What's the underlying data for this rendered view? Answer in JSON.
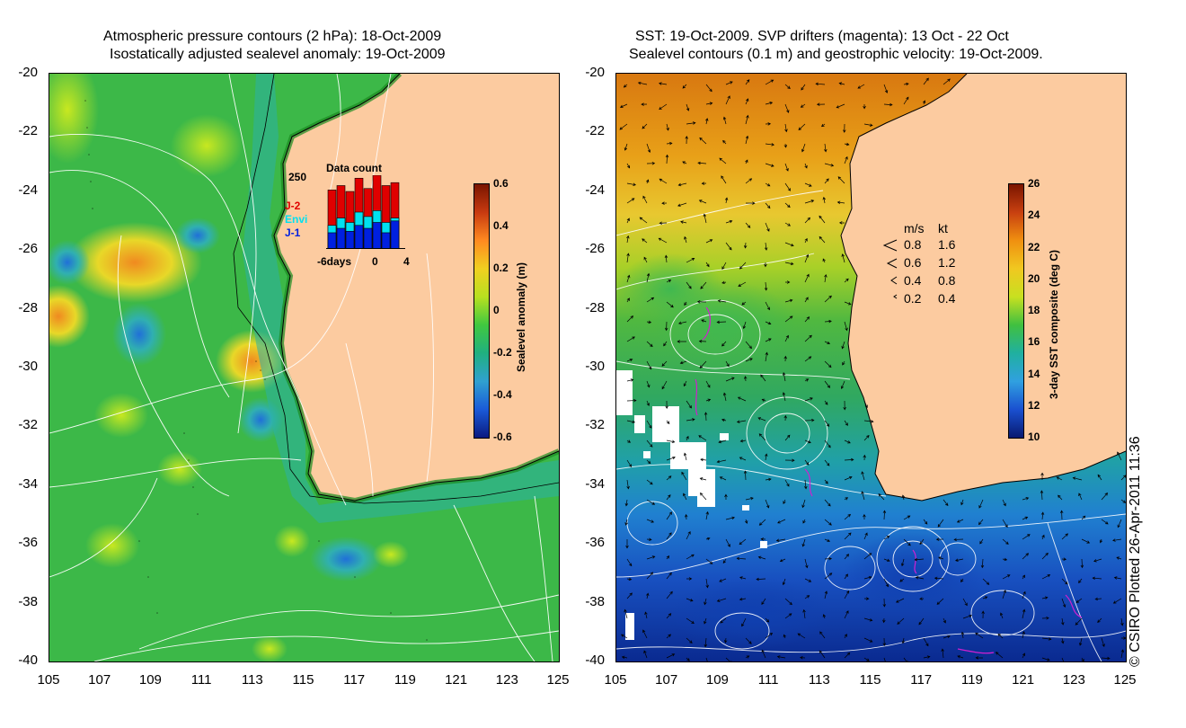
{
  "left": {
    "title_line1": "Atmospheric pressure contours (2 hPa): 18-Oct-2009",
    "title_line2": "Isostatically adjusted sealevel anomaly: 19-Oct-2009",
    "colorbar_label": "Sealevel anomaly (m)",
    "colorbar_ticks": [
      "0.6",
      "0.4",
      "0.2",
      "0",
      "-0.2",
      "-0.4",
      "-0.6"
    ],
    "colorbar_colors": [
      "#7a1500",
      "#c83a10",
      "#ff8a20",
      "#f0d020",
      "#b8e020",
      "#40c840",
      "#20b080",
      "#30a0d0",
      "#1a5ad8",
      "#0a1a80"
    ],
    "datacount": {
      "title": "Data count",
      "max_label": "250",
      "axis_labels": [
        "-6days",
        "0",
        "4"
      ],
      "legend": [
        {
          "label": "J-2",
          "color": "#e00000"
        },
        {
          "label": "Envi",
          "color": "#00e0f0"
        },
        {
          "label": "J-1",
          "color": "#0020e0"
        }
      ],
      "bars": [
        {
          "j1": 55,
          "envi": 80,
          "j2": 200
        },
        {
          "j1": 70,
          "envi": 105,
          "j2": 215
        },
        {
          "j1": 60,
          "envi": 90,
          "j2": 195
        },
        {
          "j1": 80,
          "envi": 125,
          "j2": 240
        },
        {
          "j1": 70,
          "envi": 110,
          "j2": 205
        },
        {
          "j1": 90,
          "envi": 130,
          "j2": 250
        },
        {
          "j1": 55,
          "envi": 90,
          "j2": 215
        },
        {
          "j1": 95,
          "envi": 105,
          "j2": 225
        }
      ]
    }
  },
  "right": {
    "title_line1": "SST: 19-Oct-2009. SVP drifters (magenta): 13 Oct - 22 Oct",
    "title_line2": "Sealevel contours (0.1 m) and geostrophic velocity: 19-Oct-2009.",
    "colorbar_label": "3-day SST composite (deg C)",
    "colorbar_ticks": [
      "26",
      "24",
      "22",
      "20",
      "18",
      "16",
      "14",
      "12",
      "10"
    ],
    "colorbar_colors": [
      "#7a1500",
      "#c84010",
      "#f09010",
      "#f0c820",
      "#c8e020",
      "#40c040",
      "#20b0a0",
      "#30a0e0",
      "#1a50d0",
      "#081a70"
    ],
    "velocity_legend": {
      "header_ms": "m/s",
      "header_kt": "kt",
      "rows": [
        {
          "ms": "0.8",
          "kt": "1.6"
        },
        {
          "ms": "0.6",
          "kt": "1.2"
        },
        {
          "ms": "0.4",
          "kt": "0.8"
        },
        {
          "ms": "0.2",
          "kt": "0.4"
        }
      ]
    }
  },
  "axes": {
    "lat_ticks": [
      "-20",
      "-22",
      "-24",
      "-26",
      "-28",
      "-30",
      "-32",
      "-34",
      "-36",
      "-38",
      "-40"
    ],
    "lon_ticks": [
      "105",
      "107",
      "109",
      "111",
      "113",
      "115",
      "117",
      "119",
      "121",
      "123",
      "125"
    ]
  },
  "copyright": "© CSIRO Plotted 26-Apr-2011 11:36",
  "colors": {
    "land": "#fccba0",
    "ocean_left": "#48c048",
    "ocean_right_warm": "#e8a020",
    "ocean_right_cold": "#1848c0"
  }
}
